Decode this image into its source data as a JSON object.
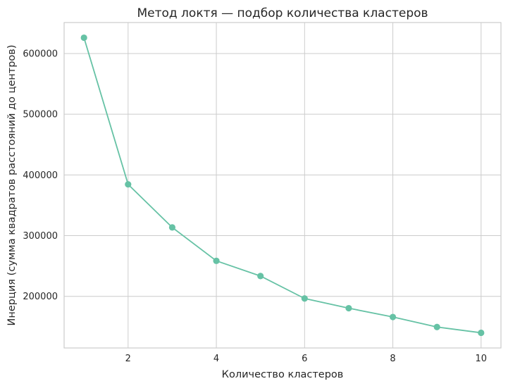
{
  "chart_data": {
    "type": "line",
    "title": "Метод локтя — подбор количества кластеров",
    "xlabel": "Количество кластеров",
    "ylabel": "Инерция (сумма квадратов расстояний до центров)",
    "x": [
      1,
      2,
      3,
      4,
      5,
      6,
      7,
      8,
      9,
      10
    ],
    "series": [
      {
        "values": [
          626000,
          384500,
          313500,
          258500,
          233500,
          196500,
          180500,
          166000,
          149500,
          140000
        ]
      }
    ],
    "xlim": [
      0.55,
      10.45
    ],
    "ylim": [
      115000,
      651000
    ],
    "xticks": [
      2,
      4,
      6,
      8,
      10
    ],
    "yticks": [
      200000,
      300000,
      400000,
      500000,
      600000
    ],
    "grid": true,
    "marker": "circle",
    "line_color": "#66c2a5"
  }
}
